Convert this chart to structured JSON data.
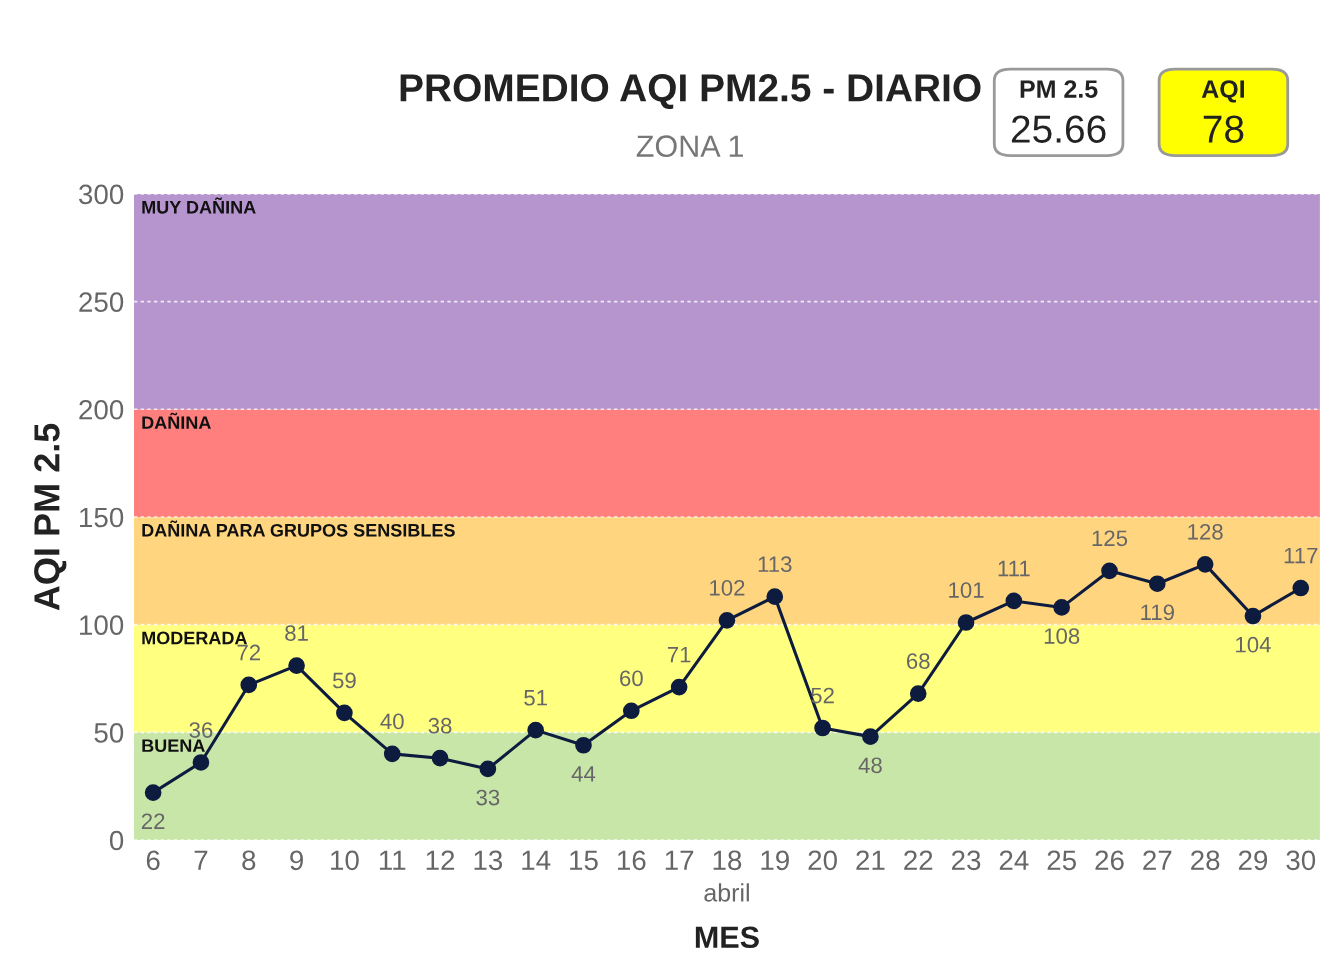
{
  "chart_data": {
    "type": "line",
    "title": "PROMEDIO AQI PM2.5 - DIARIO",
    "subtitle": "ZONA 1",
    "xlabel": "MES",
    "ylabel": "AQI PM 2.5",
    "categories": [
      "6",
      "7",
      "8",
      "9",
      "10",
      "11",
      "12",
      "13",
      "14",
      "15",
      "16",
      "17",
      "18",
      "19",
      "20",
      "21",
      "22",
      "23",
      "24",
      "25",
      "26",
      "27",
      "28",
      "29",
      "30"
    ],
    "series": [
      {
        "color": "#0d1b3e",
        "values": [
          22,
          36,
          72,
          81,
          59,
          40,
          38,
          33,
          51,
          44,
          60,
          71,
          102,
          113,
          52,
          48,
          68,
          101,
          111,
          108,
          125,
          119,
          128,
          104,
          117
        ]
      }
    ],
    "ylim": [
      0,
      300
    ],
    "yticks": [
      0,
      50,
      100,
      150,
      200,
      250,
      300
    ],
    "grid": "y",
    "marker": "circle",
    "line_style": "solid",
    "data_labels": true,
    "bands": [
      {
        "axis": "y",
        "from": 0,
        "to": 50,
        "label": "BUENA",
        "color": "#c8e6a8"
      },
      {
        "axis": "y",
        "from": 50,
        "to": 100,
        "label": "MODERADA",
        "color": "#ffff80"
      },
      {
        "axis": "y",
        "from": 100,
        "to": 150,
        "label": "DAÑINA PARA GRUPOS SENSIBLES",
        "color": "#ffd580"
      },
      {
        "axis": "y",
        "from": 150,
        "to": 200,
        "label": "DAÑINA",
        "color": "#ff7f7f"
      },
      {
        "axis": "y",
        "from": 200,
        "to": 300,
        "label": "MUY DAÑINA",
        "color": "#b695cf"
      }
    ],
    "annotations": [
      "PM 2.5",
      "25.66",
      "AQI",
      "78",
      "abril"
    ]
  }
}
